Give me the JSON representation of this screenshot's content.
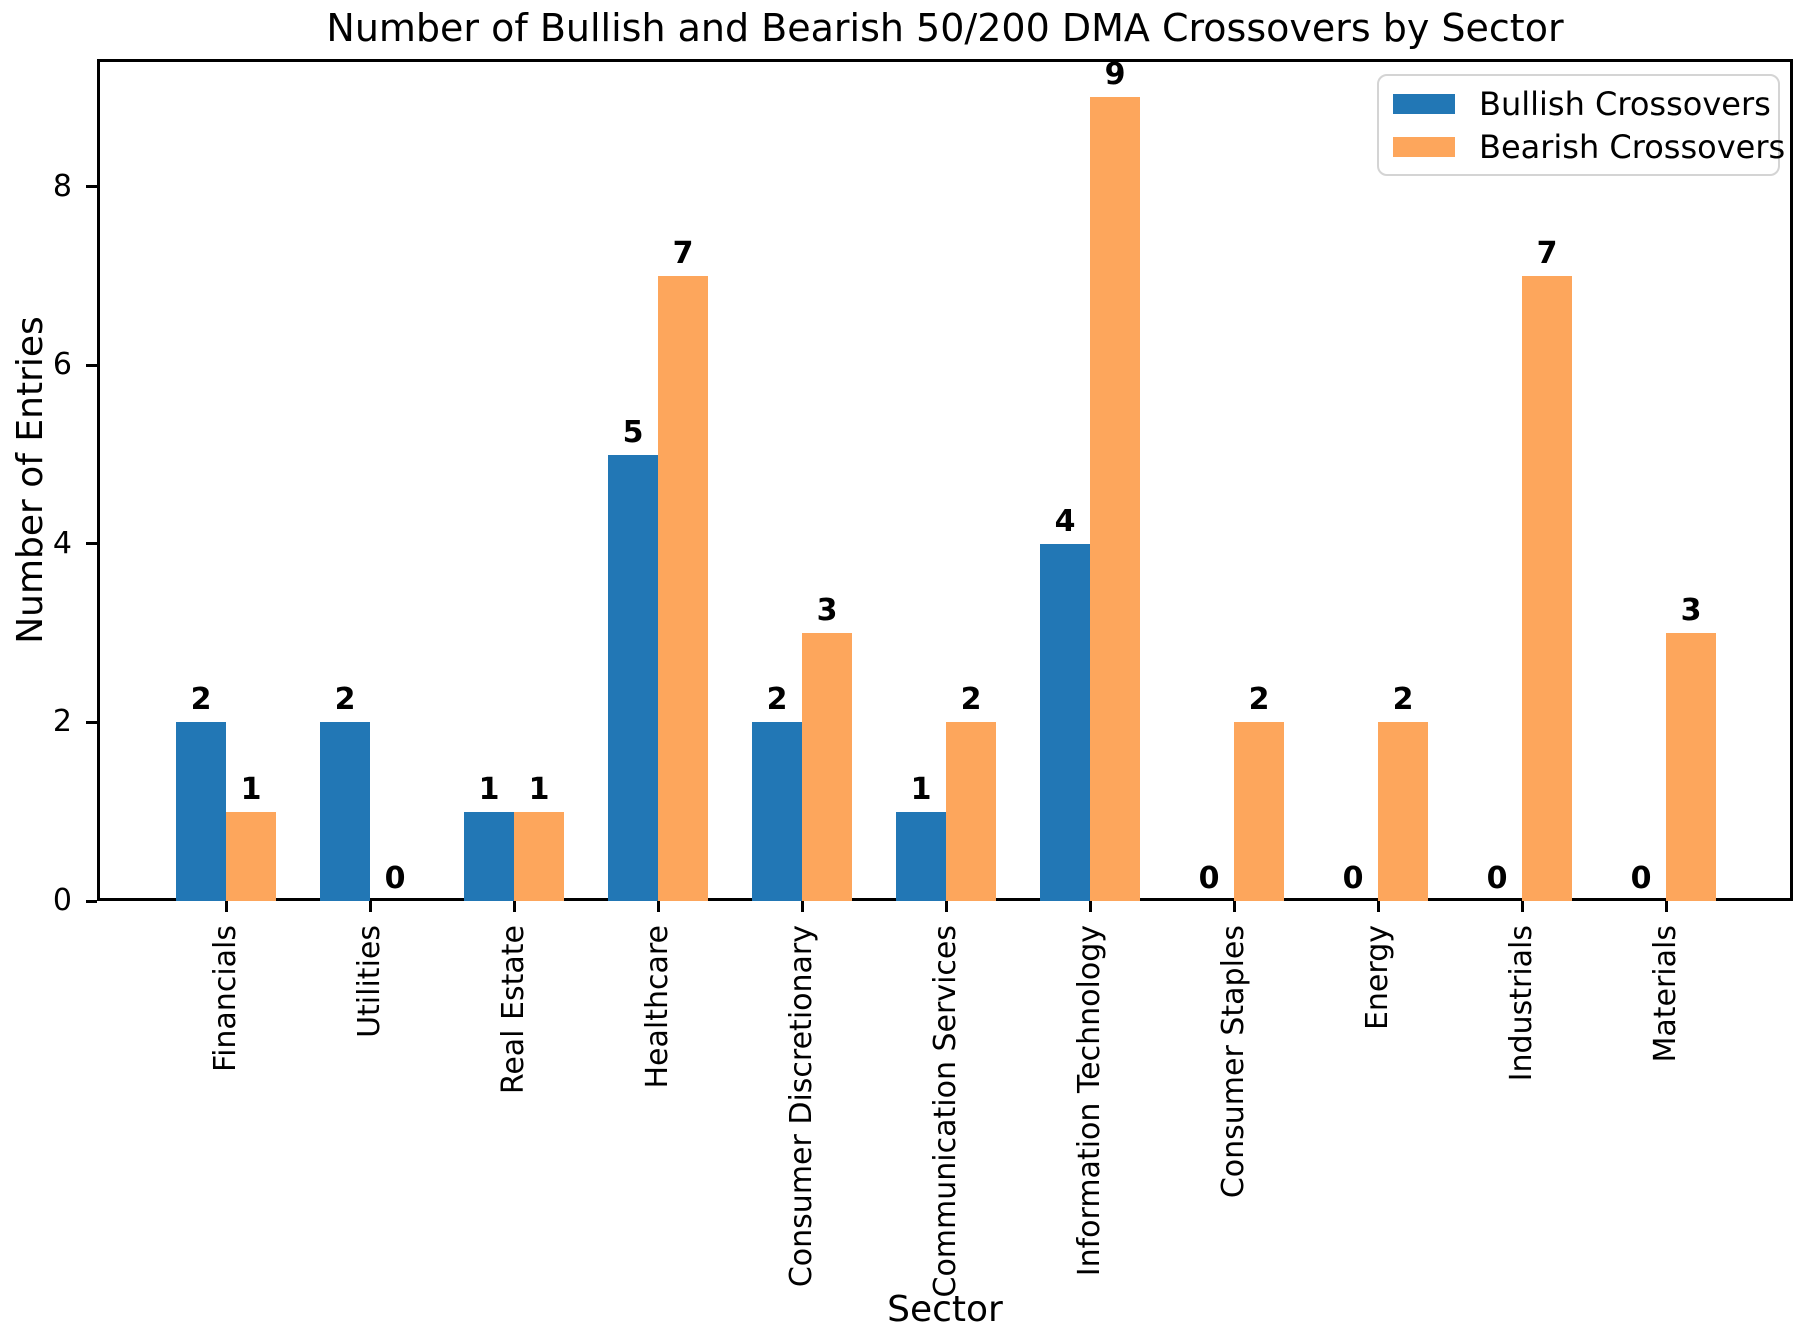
{
  "title": "Number of Bullish and Bearish 50/200 DMA Crossovers by Sector",
  "legend": {
    "items": [
      {
        "label": "Bullish Crossovers",
        "color": "#2277b5"
      },
      {
        "label": "Bearish Crossovers",
        "color": "#fda65c"
      }
    ]
  },
  "chart_data": {
    "type": "bar",
    "title": "Number of Bullish and Bearish 50/200 DMA Crossovers by Sector",
    "xlabel": "Sector",
    "ylabel": "Number of Entries",
    "categories": [
      "Financials",
      "Utilities",
      "Real Estate",
      "Healthcare",
      "Consumer Discretionary",
      "Communication Services",
      "Information Technology",
      "Consumer Staples",
      "Energy",
      "Industrials",
      "Materials"
    ],
    "series": [
      {
        "name": "Bullish Crossovers",
        "color": "#2277b5",
        "values": [
          2,
          2,
          1,
          5,
          2,
          1,
          4,
          0,
          0,
          0,
          0
        ]
      },
      {
        "name": "Bearish Crossovers",
        "color": "#fda65c",
        "values": [
          1,
          0,
          1,
          7,
          3,
          2,
          9,
          2,
          2,
          7,
          3
        ]
      }
    ],
    "bar_value_labels": true,
    "yticks": [
      0,
      2,
      4,
      6,
      8
    ],
    "ylim": [
      0,
      9.43
    ],
    "grid": false,
    "legend_position": "upper right",
    "xtick_rotation": 90,
    "background": "#ffffff"
  }
}
